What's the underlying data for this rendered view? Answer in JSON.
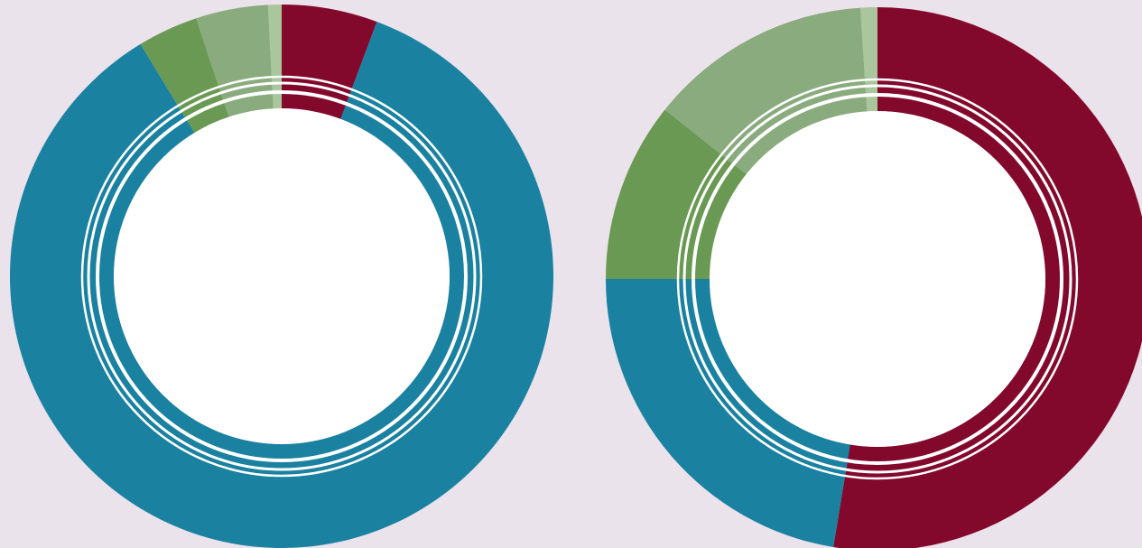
{
  "colors": {
    "background": "#ebe3eb",
    "crimson": "#83092c",
    "teal": "#1a81a1",
    "green": "#699952",
    "sage": "#89ab7d",
    "pale_green": "#a9c69d",
    "center": "#ffffff",
    "ring_lines": "#ffffff"
  },
  "chart_data": [
    {
      "type": "pie",
      "variant": "donut",
      "title": "",
      "slices": [
        {
          "value": 5.7,
          "color": "#83092c"
        },
        {
          "value": 85.6,
          "color": "#1a81a1"
        },
        {
          "value": 3.6,
          "color": "#699952"
        },
        {
          "value": 4.3,
          "color": "#89ab7d"
        },
        {
          "value": 0.8,
          "color": "#a9c69d"
        }
      ]
    },
    {
      "type": "pie",
      "variant": "donut",
      "title": "",
      "slices": [
        {
          "value": 52.6,
          "color": "#83092c"
        },
        {
          "value": 22.4,
          "color": "#1a81a1"
        },
        {
          "value": 10.7,
          "color": "#699952"
        },
        {
          "value": 13.3,
          "color": "#89ab7d"
        },
        {
          "value": 1.0,
          "color": "#a9c69d"
        }
      ]
    }
  ]
}
